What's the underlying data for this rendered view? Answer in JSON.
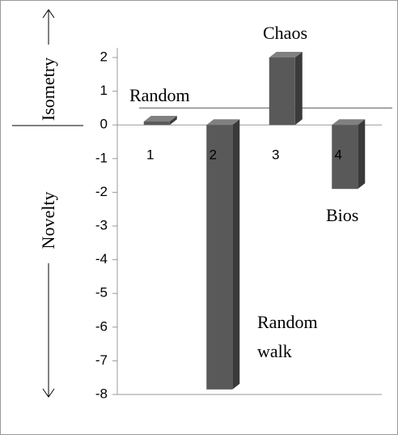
{
  "chart_data": {
    "type": "bar3d",
    "categories": [
      "1",
      "2",
      "3",
      "4"
    ],
    "values": [
      0.1,
      -7.85,
      2.0,
      -1.9
    ],
    "color": "#595959",
    "ylim": [
      -8,
      2
    ],
    "yticks": [
      2,
      1,
      0,
      -1,
      -2,
      -3,
      -4,
      -5,
      -6,
      -7,
      -8
    ],
    "hline": 0.5,
    "axis_labels": {
      "upper": "Isometry",
      "lower": "Novelty"
    },
    "annotations": [
      {
        "text": "Random",
        "category": 0
      },
      {
        "text": "Random walk",
        "lines": [
          "Random",
          "walk"
        ],
        "category": 1
      },
      {
        "text": "Chaos",
        "category": 2
      },
      {
        "text": "Bios",
        "category": 3
      }
    ]
  }
}
